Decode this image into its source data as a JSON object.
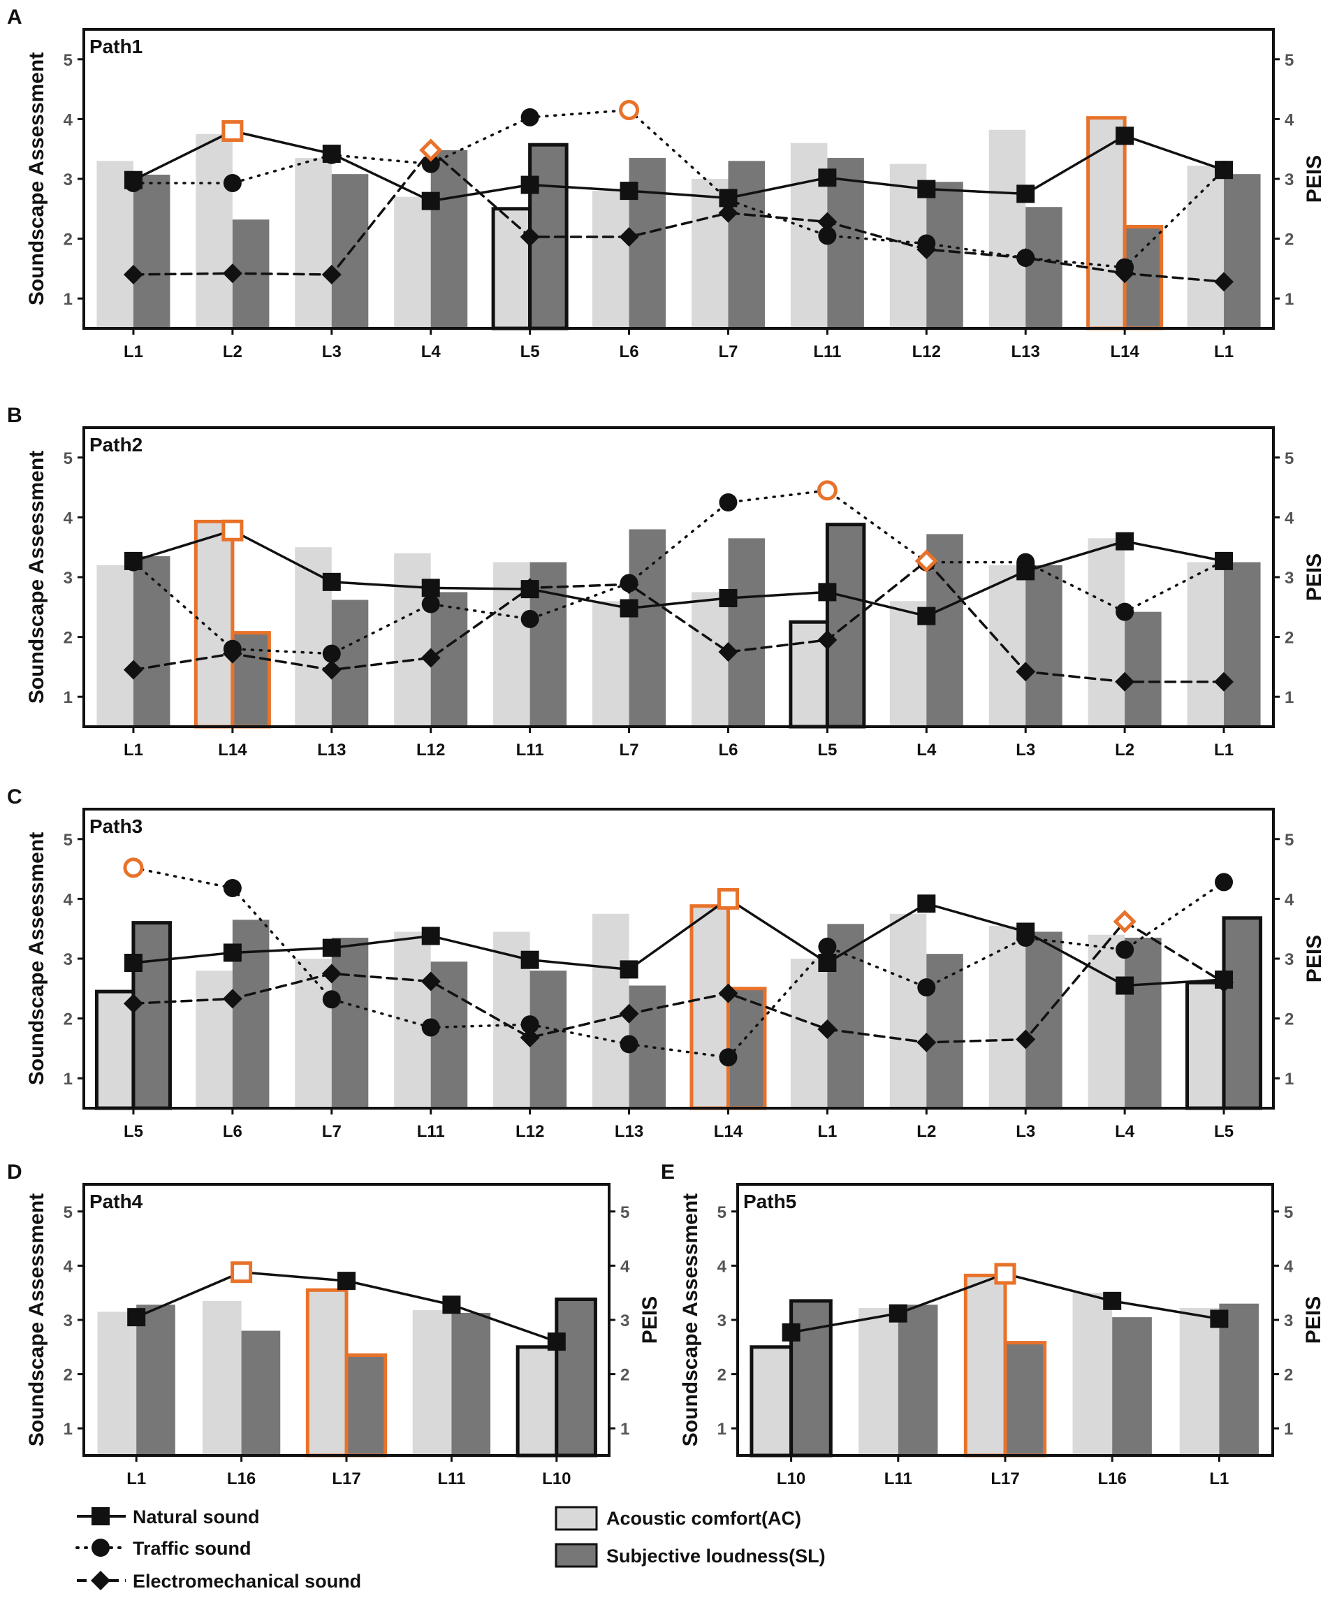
{
  "legend": {
    "natural": "Natural sound",
    "traffic": "Traffic sound",
    "electro": "Electromechanical sound",
    "ac": "Acoustic comfort(AC)",
    "sl": "Subjective loudness(SL)"
  },
  "colors": {
    "ac_fill": "#d9d9d9",
    "sl_fill": "#777777",
    "highlight": "#e8722a",
    "line": "#111111"
  },
  "chart_data": [
    {
      "type": "bar+line",
      "panel": "A",
      "title": "Path1",
      "ylabel": "Soundscape Assessment",
      "y2label": "PEIS",
      "ylim": [
        0.5,
        5.5
      ],
      "yticks": [
        1,
        2,
        3,
        4,
        5
      ],
      "y2ticks": [
        1,
        2,
        3,
        4,
        5
      ],
      "categories": [
        "L1",
        "L2",
        "L3",
        "L4",
        "L5",
        "L6",
        "L7",
        "L11",
        "L12",
        "L13",
        "L14",
        "L1"
      ],
      "ac": [
        3.3,
        3.75,
        3.35,
        2.7,
        2.5,
        2.8,
        3.0,
        3.6,
        3.25,
        3.82,
        4.02,
        3.22
      ],
      "sl": [
        3.07,
        2.32,
        3.08,
        3.48,
        3.57,
        3.35,
        3.3,
        3.35,
        2.95,
        2.53,
        2.2,
        3.08
      ],
      "natural": [
        2.98,
        3.8,
        3.42,
        2.63,
        2.9,
        2.8,
        2.68,
        3.02,
        2.83,
        2.75,
        3.72,
        3.15
      ],
      "traffic": [
        2.93,
        2.93,
        3.4,
        3.25,
        4.03,
        4.15,
        2.65,
        2.05,
        1.92,
        1.68,
        1.52,
        3.15
      ],
      "electro": [
        1.4,
        1.42,
        1.4,
        3.48,
        2.03,
        2.03,
        2.43,
        2.28,
        1.82,
        1.68,
        1.42,
        1.28
      ],
      "highlight_bars": [
        10
      ],
      "outline_bars": [
        4
      ],
      "highlight_points": {
        "natural": 1,
        "traffic": 5,
        "electro": 3
      }
    },
    {
      "type": "bar+line",
      "panel": "B",
      "title": "Path2",
      "ylabel": "Soundscape Assessment",
      "y2label": "PEIS",
      "ylim": [
        0.5,
        5.5
      ],
      "yticks": [
        1,
        2,
        3,
        4,
        5
      ],
      "y2ticks": [
        1,
        2,
        3,
        4,
        5
      ],
      "categories": [
        "L1",
        "L14",
        "L13",
        "L12",
        "L11",
        "L7",
        "L6",
        "L5",
        "L4",
        "L3",
        "L2",
        "L1"
      ],
      "ac": [
        3.2,
        3.93,
        3.5,
        3.4,
        3.25,
        2.6,
        2.75,
        2.25,
        2.6,
        3.2,
        3.65,
        3.25
      ],
      "sl": [
        3.35,
        2.07,
        2.62,
        2.75,
        3.25,
        3.8,
        3.65,
        3.88,
        3.72,
        3.2,
        2.42,
        3.25
      ],
      "natural": [
        3.27,
        3.78,
        2.92,
        2.82,
        2.8,
        2.48,
        2.65,
        2.75,
        2.35,
        3.1,
        3.6,
        3.27
      ],
      "traffic": [
        3.25,
        1.8,
        1.72,
        2.55,
        2.3,
        2.9,
        4.25,
        4.45,
        3.25,
        3.25,
        2.42,
        3.27
      ],
      "electro": [
        1.45,
        1.72,
        1.45,
        1.65,
        2.82,
        2.88,
        1.75,
        1.95,
        3.27,
        1.42,
        1.25,
        1.25
      ],
      "highlight_bars": [
        1
      ],
      "outline_bars": [
        7
      ],
      "highlight_points": {
        "natural": 1,
        "traffic": 7,
        "electro": 8
      }
    },
    {
      "type": "bar+line",
      "panel": "C",
      "title": "Path3",
      "ylabel": "Soundscape Assessment",
      "y2label": "PEIS",
      "ylim": [
        0.5,
        5.5
      ],
      "yticks": [
        1,
        2,
        3,
        4,
        5
      ],
      "y2ticks": [
        1,
        2,
        3,
        4,
        5
      ],
      "categories": [
        "L5",
        "L6",
        "L7",
        "L11",
        "L12",
        "L13",
        "L14",
        "L1",
        "L2",
        "L3",
        "L4",
        "L5"
      ],
      "ac": [
        2.45,
        2.8,
        3.0,
        3.45,
        3.45,
        3.75,
        3.88,
        3.0,
        3.75,
        3.55,
        3.4,
        2.6
      ],
      "sl": [
        3.6,
        3.65,
        3.35,
        2.95,
        2.8,
        2.55,
        2.5,
        3.58,
        3.08,
        3.45,
        3.35,
        3.68
      ],
      "natural": [
        2.93,
        3.1,
        3.18,
        3.38,
        2.98,
        2.82,
        4.0,
        2.93,
        3.92,
        3.45,
        2.55,
        2.65
      ],
      "traffic": [
        4.52,
        4.18,
        2.32,
        1.85,
        1.9,
        1.57,
        1.35,
        3.2,
        2.52,
        3.35,
        3.15,
        4.28
      ],
      "electro": [
        2.25,
        2.33,
        2.75,
        2.62,
        1.68,
        2.08,
        2.42,
        1.82,
        1.6,
        1.65,
        3.62,
        2.6
      ],
      "highlight_bars": [
        6
      ],
      "outline_bars": [
        0,
        11
      ],
      "highlight_points": {
        "natural": 6,
        "traffic": 0,
        "electro": 10
      }
    },
    {
      "type": "bar+line",
      "panel": "D",
      "title": "Path4",
      "ylabel": "Soundscape Assessment",
      "y2label": "PEIS",
      "ylim": [
        0.5,
        5.5
      ],
      "yticks": [
        1,
        2,
        3,
        4,
        5
      ],
      "y2ticks": [
        1,
        2,
        3,
        4,
        5
      ],
      "categories": [
        "L1",
        "L16",
        "L17",
        "L11",
        "L10"
      ],
      "ac": [
        3.15,
        3.35,
        3.55,
        3.18,
        2.5
      ],
      "sl": [
        3.28,
        2.8,
        2.35,
        3.13,
        3.38
      ],
      "natural": [
        3.05,
        3.88,
        3.72,
        3.28,
        2.6
      ],
      "highlight_bars": [
        2
      ],
      "outline_bars": [
        4
      ],
      "highlight_points": {
        "natural": 1
      }
    },
    {
      "type": "bar+line",
      "panel": "E",
      "title": "Path5",
      "ylabel": "Soundscape Assessment",
      "y2label": "PEIS",
      "ylim": [
        0.5,
        5.5
      ],
      "yticks": [
        1,
        2,
        3,
        4,
        5
      ],
      "y2ticks": [
        1,
        2,
        3,
        4,
        5
      ],
      "categories": [
        "L10",
        "L11",
        "L17",
        "L16",
        "L1"
      ],
      "ac": [
        2.5,
        3.22,
        3.82,
        3.5,
        3.22
      ],
      "sl": [
        3.35,
        3.28,
        2.58,
        3.05,
        3.3
      ],
      "natural": [
        2.77,
        3.12,
        3.85,
        3.35,
        3.02
      ],
      "highlight_bars": [
        2
      ],
      "outline_bars": [
        0
      ],
      "highlight_points": {
        "natural": 2
      }
    }
  ]
}
